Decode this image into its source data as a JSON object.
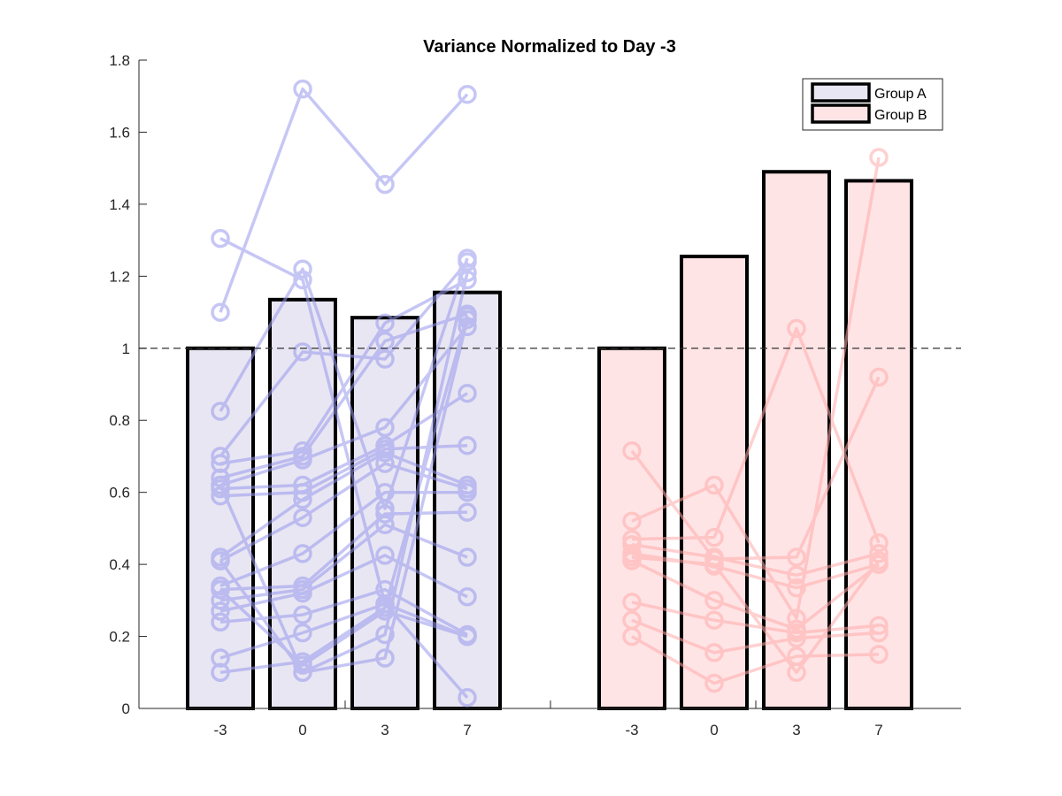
{
  "chart_data": {
    "type": "bar",
    "title": "Variance Normalized to Day -3",
    "xlabel": "",
    "ylabel": "",
    "ylim": [
      0,
      1.8
    ],
    "yticks": [
      0,
      0.2,
      0.4,
      0.6,
      0.8,
      1,
      1.2,
      1.4,
      1.6,
      1.8
    ],
    "ytick_labels": [
      "0",
      "0.2",
      "0.4",
      "0.6",
      "0.8",
      "1",
      "1.2",
      "1.4",
      "1.6",
      "1.8"
    ],
    "reference_line": 1,
    "legend_position": "top-right",
    "categories": [
      "-3",
      "0",
      "3",
      "7"
    ],
    "series": [
      {
        "name": "Group A",
        "fill_color": "#e8e6f2",
        "point_color": "#9999ee",
        "values": [
          1.0,
          1.135,
          1.085,
          1.155
        ],
        "subjects": [
          [
            1.305,
            1.19,
            0.29,
            0.03
          ],
          [
            1.1,
            1.72,
            1.455,
            1.705
          ],
          [
            0.825,
            1.22,
            0.555,
            1.25
          ],
          [
            0.7,
            0.99,
            0.97,
            1.24
          ],
          [
            0.68,
            0.715,
            1.07,
            1.19
          ],
          [
            0.64,
            0.7,
            1.02,
            1.095
          ],
          [
            0.62,
            0.69,
            0.78,
            1.06
          ],
          [
            0.61,
            0.62,
            0.73,
            0.875
          ],
          [
            0.59,
            0.6,
            0.72,
            0.73
          ],
          [
            0.42,
            0.58,
            0.71,
            0.62
          ],
          [
            0.41,
            0.53,
            0.68,
            0.61
          ],
          [
            0.34,
            0.43,
            0.6,
            0.6
          ],
          [
            0.33,
            0.34,
            0.54,
            0.545
          ],
          [
            0.3,
            0.33,
            0.51,
            0.42
          ],
          [
            0.27,
            0.32,
            0.425,
            0.31
          ],
          [
            0.24,
            0.26,
            0.33,
            0.205
          ],
          [
            0.14,
            0.21,
            0.29,
            0.2
          ],
          [
            0.1,
            0.13,
            0.28,
            1.09
          ],
          [
            0.33,
            0.12,
            0.27,
            0.2
          ],
          [
            0.62,
            0.1,
            0.205,
            1.21
          ],
          [
            0.41,
            0.1,
            0.14,
            1.08
          ]
        ]
      },
      {
        "name": "Group B",
        "fill_color": "#ffe4e6",
        "point_color": "#ffaaaa",
        "values": [
          1.0,
          1.255,
          1.49,
          1.465
        ],
        "subjects": [
          [
            0.715,
            0.415,
            0.42,
            0.92
          ],
          [
            0.52,
            0.62,
            0.25,
            1.53
          ],
          [
            0.47,
            0.475,
            1.055,
            0.46
          ],
          [
            0.455,
            0.42,
            0.37,
            0.43
          ],
          [
            0.43,
            0.395,
            0.335,
            0.4
          ],
          [
            0.41,
            0.3,
            0.22,
            0.4
          ],
          [
            0.295,
            0.245,
            0.21,
            0.23
          ],
          [
            0.245,
            0.155,
            0.195,
            0.21
          ],
          [
            0.2,
            0.07,
            0.145,
            0.15
          ],
          [
            0.42,
            0.4,
            0.1,
            0.41
          ]
        ]
      }
    ]
  }
}
